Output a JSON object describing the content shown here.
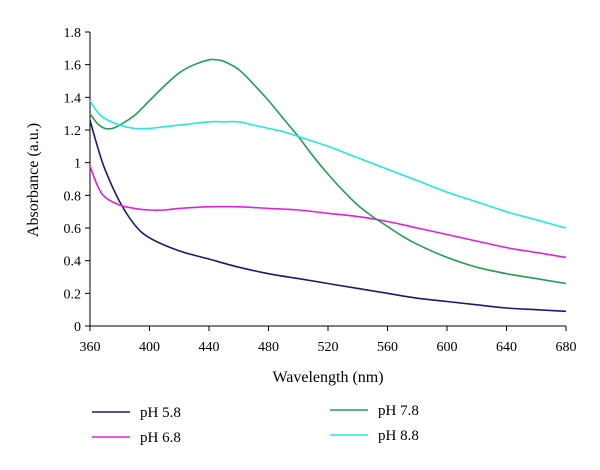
{
  "chart_data": {
    "type": "line",
    "xlabel": "Wavelength (nm)",
    "ylabel": "Absorbance (a.u.)",
    "xlim": [
      360,
      680
    ],
    "ylim": [
      0,
      1.8
    ],
    "x_ticks": [
      "360",
      "400",
      "440",
      "480",
      "520",
      "560",
      "600",
      "640",
      "680"
    ],
    "y_ticks": [
      "0",
      "0.2",
      "0.4",
      "0.6",
      "0.8",
      "1",
      "1.2",
      "1.4",
      "1.6",
      "1.8"
    ],
    "grid": false,
    "legend_position": "bottom",
    "series": [
      {
        "name": "pH 5.8",
        "color": "#1a1a7a",
        "points": [
          [
            360,
            1.26
          ],
          [
            365,
            1.1
          ],
          [
            370,
            0.96
          ],
          [
            380,
            0.76
          ],
          [
            390,
            0.62
          ],
          [
            400,
            0.54
          ],
          [
            420,
            0.46
          ],
          [
            440,
            0.41
          ],
          [
            460,
            0.36
          ],
          [
            480,
            0.32
          ],
          [
            500,
            0.29
          ],
          [
            520,
            0.26
          ],
          [
            540,
            0.23
          ],
          [
            560,
            0.2
          ],
          [
            580,
            0.17
          ],
          [
            600,
            0.15
          ],
          [
            620,
            0.13
          ],
          [
            640,
            0.11
          ],
          [
            660,
            0.1
          ],
          [
            680,
            0.09
          ]
        ]
      },
      {
        "name": "pH 6.8",
        "color": "#e020e0",
        "points": [
          [
            360,
            0.98
          ],
          [
            365,
            0.86
          ],
          [
            370,
            0.79
          ],
          [
            380,
            0.74
          ],
          [
            390,
            0.72
          ],
          [
            400,
            0.71
          ],
          [
            410,
            0.71
          ],
          [
            420,
            0.72
          ],
          [
            440,
            0.73
          ],
          [
            460,
            0.73
          ],
          [
            480,
            0.72
          ],
          [
            500,
            0.71
          ],
          [
            520,
            0.69
          ],
          [
            540,
            0.67
          ],
          [
            560,
            0.64
          ],
          [
            580,
            0.6
          ],
          [
            600,
            0.56
          ],
          [
            620,
            0.52
          ],
          [
            640,
            0.48
          ],
          [
            660,
            0.45
          ],
          [
            680,
            0.42
          ]
        ]
      },
      {
        "name": "pH 7.8",
        "color": "#20a050",
        "points": [
          [
            360,
            1.3
          ],
          [
            365,
            1.24
          ],
          [
            370,
            1.21
          ],
          [
            375,
            1.21
          ],
          [
            380,
            1.23
          ],
          [
            390,
            1.29
          ],
          [
            400,
            1.38
          ],
          [
            410,
            1.47
          ],
          [
            420,
            1.55
          ],
          [
            430,
            1.6
          ],
          [
            440,
            1.63
          ],
          [
            445,
            1.63
          ],
          [
            450,
            1.62
          ],
          [
            460,
            1.57
          ],
          [
            470,
            1.48
          ],
          [
            480,
            1.38
          ],
          [
            490,
            1.27
          ],
          [
            500,
            1.16
          ],
          [
            510,
            1.04
          ],
          [
            520,
            0.93
          ],
          [
            530,
            0.83
          ],
          [
            540,
            0.74
          ],
          [
            550,
            0.67
          ],
          [
            560,
            0.61
          ],
          [
            570,
            0.55
          ],
          [
            580,
            0.5
          ],
          [
            600,
            0.42
          ],
          [
            620,
            0.36
          ],
          [
            640,
            0.32
          ],
          [
            660,
            0.29
          ],
          [
            680,
            0.26
          ]
        ]
      },
      {
        "name": "pH 8.8",
        "color": "#20e8e8",
        "points": [
          [
            360,
            1.38
          ],
          [
            365,
            1.31
          ],
          [
            370,
            1.27
          ],
          [
            380,
            1.23
          ],
          [
            390,
            1.21
          ],
          [
            400,
            1.21
          ],
          [
            410,
            1.22
          ],
          [
            420,
            1.23
          ],
          [
            440,
            1.25
          ],
          [
            450,
            1.25
          ],
          [
            460,
            1.25
          ],
          [
            470,
            1.23
          ],
          [
            480,
            1.21
          ],
          [
            490,
            1.19
          ],
          [
            500,
            1.16
          ],
          [
            520,
            1.1
          ],
          [
            540,
            1.03
          ],
          [
            560,
            0.96
          ],
          [
            580,
            0.89
          ],
          [
            600,
            0.82
          ],
          [
            620,
            0.76
          ],
          [
            640,
            0.7
          ],
          [
            660,
            0.65
          ],
          [
            680,
            0.6
          ]
        ]
      }
    ]
  }
}
